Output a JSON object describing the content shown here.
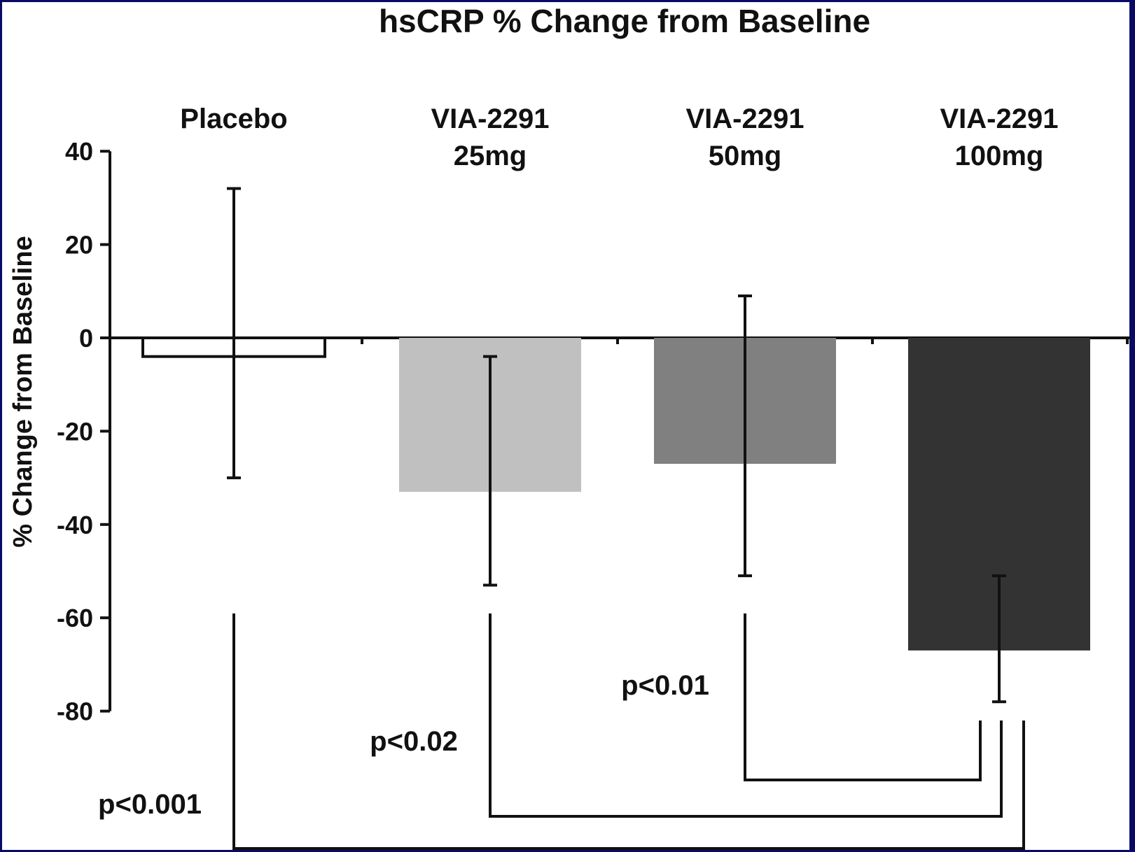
{
  "chart_data": {
    "type": "bar",
    "title": "hsCRP % Change from Baseline",
    "ylabel": "% Change from Baseline",
    "xlabel": "",
    "ylim": [
      -80,
      40
    ],
    "yticks": [
      "40",
      "20",
      "0",
      "-20",
      "-40",
      "-60",
      "-80"
    ],
    "categories": [
      {
        "line1": "Placebo",
        "line2": ""
      },
      {
        "line1": "VIA-2291",
        "line2": "25mg"
      },
      {
        "line1": "VIA-2291",
        "line2": "50mg"
      },
      {
        "line1": "VIA-2291",
        "line2": "100mg"
      }
    ],
    "values": [
      -4,
      -33,
      -27,
      -67
    ],
    "error_low": [
      -30,
      -53,
      -51,
      -78
    ],
    "error_high": [
      32,
      -4,
      9,
      -51
    ],
    "bar_colors": [
      "#ffffff",
      "#c0c0c0",
      "#808080",
      "#333333"
    ],
    "comparisons": [
      {
        "from": 2,
        "to": 3,
        "label": "p<0.01"
      },
      {
        "from": 1,
        "to": 3,
        "label": "p<0.02"
      },
      {
        "from": 0,
        "to": 3,
        "label": "p<0.001"
      }
    ],
    "grid": false,
    "legend": "none"
  }
}
